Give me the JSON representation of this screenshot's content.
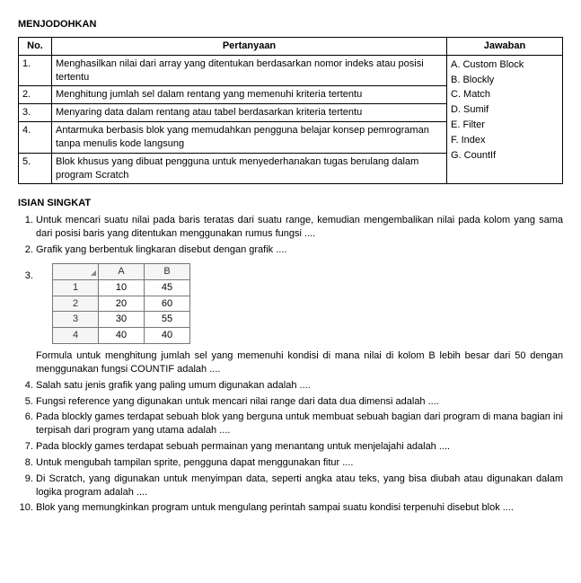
{
  "menjodohkan": {
    "title": "MENJODOHKAN",
    "headers": {
      "no": "No.",
      "pertanyaan": "Pertanyaan",
      "jawaban": "Jawaban"
    },
    "rows": [
      {
        "no": "1.",
        "q": "Menghasilkan nilai dari array yang ditentukan berdasarkan nomor indeks atau posisi tertentu"
      },
      {
        "no": "2.",
        "q": "Menghitung jumlah sel dalam rentang yang memenuhi kriteria tertentu"
      },
      {
        "no": "3.",
        "q": "Menyaring data dalam rentang atau tabel berdasarkan kriteria tertentu"
      },
      {
        "no": "4.",
        "q": "Antarmuka berbasis blok yang memudahkan pengguna belajar konsep pemrograman tanpa menulis kode langsung"
      },
      {
        "no": "5.",
        "q": "Blok khusus yang dibuat pengguna untuk menyederhanakan tugas berulang dalam program Scratch"
      }
    ],
    "answers": [
      "A.   Custom Block",
      "B.   Blockly",
      "C.   Match",
      "D.   Sumif",
      "E.   Filter",
      "F.   Index",
      "G.   CountIf"
    ]
  },
  "isian": {
    "title": "ISIAN SINGKAT",
    "items": [
      "Untuk mencari suatu nilai pada baris teratas dari suatu range, kemudian mengembalikan nilai pada kolom yang sama dari posisi baris yang ditentukan menggunakan rumus fungsi ....",
      "Grafik yang berbentuk lingkaran disebut dengan grafik ....",
      "",
      "Salah satu jenis grafik yang paling umum digunakan adalah ....",
      "Fungsi reference yang digunakan untuk mencari nilai range dari data dua dimensi adalah ....",
      "Pada blockly games terdapat sebuah blok yang berguna untuk membuat sebuah bagian dari program di mana bagian ini terpisah dari program yang utama adalah ....",
      "Pada blockly games terdapat sebuah permainan yang menantang untuk menjelajahi adalah ....",
      "Untuk mengubah tampilan sprite, pengguna dapat menggunakan fitur ....",
      "Di Scratch, yang digunakan untuk menyimpan data, seperti angka atau teks, yang bisa diubah atau digunakan dalam logika program adalah ....",
      "Blok yang memungkinkan program untuk mengulang perintah sampai suatu kondisi terpenuhi disebut blok ...."
    ],
    "q3": {
      "table": {
        "colA": "A",
        "colB": "B",
        "rows": [
          {
            "n": "1",
            "a": "10",
            "b": "45"
          },
          {
            "n": "2",
            "a": "20",
            "b": "60"
          },
          {
            "n": "3",
            "a": "30",
            "b": "55"
          },
          {
            "n": "4",
            "a": "40",
            "b": "40"
          }
        ]
      },
      "text": "Formula untuk menghitung jumlah sel yang memenuhi kondisi di mana nilai di kolom B lebih besar dari 50 dengan menggunakan fungsi COUNTIF adalah ...."
    }
  }
}
